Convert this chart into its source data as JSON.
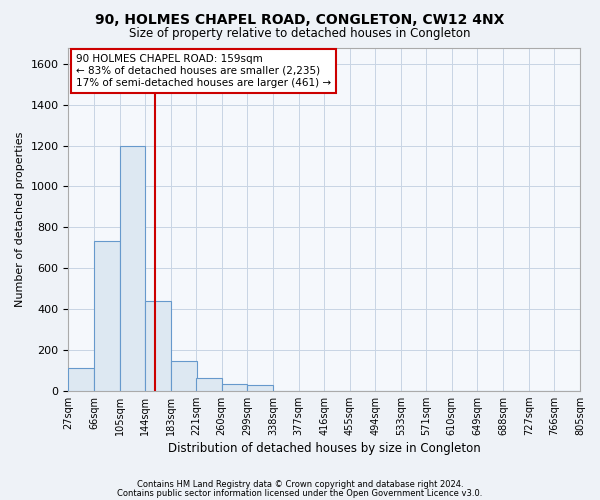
{
  "title": "90, HOLMES CHAPEL ROAD, CONGLETON, CW12 4NX",
  "subtitle": "Size of property relative to detached houses in Congleton",
  "xlabel": "Distribution of detached houses by size in Congleton",
  "ylabel": "Number of detached properties",
  "bin_edges": [
    27,
    66,
    105,
    144,
    183,
    221,
    260,
    299,
    338,
    377,
    416,
    455,
    494,
    533,
    571,
    610,
    649,
    688,
    727,
    766,
    805
  ],
  "bar_heights": [
    110,
    735,
    1200,
    440,
    145,
    60,
    35,
    30,
    0,
    0,
    0,
    0,
    0,
    0,
    0,
    0,
    0,
    0,
    0,
    0
  ],
  "bar_color": "#dde8f2",
  "bar_edge_color": "#6699cc",
  "property_size": 159,
  "vline_color": "#cc0000",
  "annotation_lines": [
    "90 HOLMES CHAPEL ROAD: 159sqm",
    "← 83% of detached houses are smaller (2,235)",
    "17% of semi-detached houses are larger (461) →"
  ],
  "annotation_box_color": "#cc0000",
  "ylim": [
    0,
    1680
  ],
  "yticks": [
    0,
    200,
    400,
    600,
    800,
    1000,
    1200,
    1400,
    1600
  ],
  "footer_line1": "Contains HM Land Registry data © Crown copyright and database right 2024.",
  "footer_line2": "Contains public sector information licensed under the Open Government Licence v3.0.",
  "background_color": "#eef2f7",
  "plot_bg_color": "#f5f8fc",
  "grid_color": "#c8d4e4"
}
